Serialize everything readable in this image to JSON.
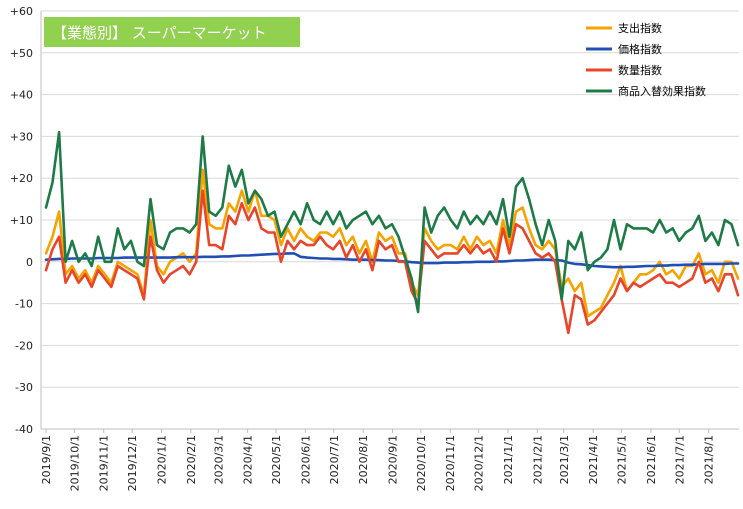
{
  "chart_data": {
    "type": "line",
    "badge": "【業態別】 スーパーマーケット",
    "title": "",
    "xlabel": "",
    "ylabel": "",
    "ylim": [
      -40,
      60
    ],
    "y_ticks": [
      {
        "value": 60,
        "label": "+60"
      },
      {
        "value": 50,
        "label": "+50"
      },
      {
        "value": 40,
        "label": "+40"
      },
      {
        "value": 30,
        "label": "+30"
      },
      {
        "value": 20,
        "label": "+20"
      },
      {
        "value": 10,
        "label": "+10"
      },
      {
        "value": 0,
        "label": "0"
      },
      {
        "value": -10,
        "label": "-10"
      },
      {
        "value": -20,
        "label": "-20"
      },
      {
        "value": -30,
        "label": "-30"
      },
      {
        "value": -40,
        "label": "-40"
      }
    ],
    "x_ticks": [
      "2019/9/1",
      "2019/10/1",
      "2019/11/1",
      "2019/12/1",
      "2020/1/1",
      "2020/2/1",
      "2020/3/1",
      "2020/4/1",
      "2020/5/1",
      "2020/6/1",
      "2020/7/1",
      "2020/8/1",
      "2020/9/1",
      "2020/10/1",
      "2020/11/1",
      "2020/12/1",
      "2021/1/1",
      "2021/2/1",
      "2021/3/1",
      "2021/4/1",
      "2021/5/1",
      "2021/6/1",
      "2021/7/1",
      "2021/8/1"
    ],
    "grid": true,
    "legend_position": "top-right",
    "x_start": "2019/9/1",
    "x_end": "2021/9/1",
    "series": [
      {
        "name": "支出指数",
        "color": "#F5A300",
        "values": [
          2,
          6,
          12,
          -3,
          -1,
          -4,
          -2,
          -5,
          -1,
          -3,
          -5,
          0,
          -1,
          -2,
          -3,
          -8,
          10,
          -1,
          -3,
          0,
          1,
          2,
          0,
          2,
          22,
          9,
          8,
          8,
          14,
          12,
          17,
          12,
          17,
          11,
          11,
          10,
          4,
          8,
          5,
          8,
          6,
          5,
          7,
          7,
          6,
          8,
          4,
          6,
          2,
          5,
          0,
          7,
          5,
          6,
          2,
          2,
          -5,
          -8,
          8,
          5,
          3,
          4,
          4,
          3,
          6,
          3,
          6,
          4,
          5,
          2,
          10,
          4,
          12,
          13,
          8,
          4,
          3,
          5,
          3,
          -6,
          -4,
          -7,
          -5,
          -13,
          -12,
          -11,
          -8,
          -5,
          -1,
          -7,
          -5,
          -3,
          -3,
          -2,
          0,
          -3,
          -2,
          -4,
          -1,
          -1,
          2,
          -3,
          -2,
          -5,
          0,
          0,
          -4
        ]
      },
      {
        "name": "価格指数",
        "color": "#1F4FB5",
        "values": [
          0.5,
          0.6,
          0.7,
          0.7,
          0.8,
          0.8,
          0.8,
          0.8,
          0.9,
          0.9,
          0.9,
          0.9,
          1.0,
          1.0,
          1.0,
          1.0,
          1.0,
          1.0,
          1.0,
          1.0,
          1.1,
          1.1,
          1.1,
          1.1,
          1.2,
          1.2,
          1.2,
          1.3,
          1.3,
          1.4,
          1.5,
          1.5,
          1.6,
          1.7,
          1.8,
          1.9,
          1.9,
          2.0,
          2.0,
          1.2,
          1.0,
          0.9,
          0.8,
          0.8,
          0.7,
          0.7,
          0.6,
          0.5,
          0.5,
          0.5,
          0.4,
          0.4,
          0.3,
          0.3,
          0.2,
          0.1,
          -0.1,
          -0.2,
          -0.3,
          -0.3,
          -0.3,
          -0.2,
          -0.2,
          -0.2,
          -0.1,
          -0.1,
          0.0,
          0.0,
          0.0,
          0.1,
          0.1,
          0.2,
          0.3,
          0.3,
          0.4,
          0.5,
          0.5,
          0.5,
          0.4,
          0.3,
          -0.2,
          -0.5,
          -0.6,
          -0.8,
          -1.0,
          -1.1,
          -1.2,
          -1.3,
          -1.3,
          -1.2,
          -1.2,
          -1.1,
          -1.0,
          -1.0,
          -0.9,
          -0.9,
          -0.8,
          -0.8,
          -0.7,
          -0.7,
          -0.6,
          -0.5,
          -0.5,
          -0.5,
          -0.5,
          -0.4,
          -0.4
        ]
      },
      {
        "name": "数量指数",
        "color": "#E8452A",
        "values": [
          -2,
          3,
          6,
          -5,
          -2,
          -5,
          -3,
          -6,
          -2,
          -4,
          -6,
          -1,
          -2,
          -3,
          -4,
          -9,
          6,
          -2,
          -5,
          -3,
          -2,
          -1,
          -3,
          0,
          17,
          4,
          4,
          3,
          11,
          9,
          14,
          10,
          13,
          8,
          7,
          7,
          0,
          5,
          3,
          5,
          4,
          4,
          6,
          4,
          3,
          5,
          1,
          4,
          0,
          3,
          -2,
          5,
          3,
          4,
          0,
          0,
          -7,
          -10,
          5,
          3,
          1,
          2,
          2,
          2,
          4,
          2,
          4,
          2,
          3,
          0,
          8,
          2,
          9,
          8,
          5,
          2,
          1,
          2,
          0,
          -9,
          -17,
          -8,
          -9,
          -15,
          -14,
          -12,
          -10,
          -8,
          -4,
          -7,
          -5,
          -6,
          -5,
          -4,
          -3,
          -5,
          -5,
          -6,
          -5,
          -4,
          0,
          -5,
          -4,
          -7,
          -3,
          -3,
          -8
        ]
      },
      {
        "name": "商品入替効果指数",
        "color": "#1E7B47",
        "values": [
          13,
          19,
          31,
          0,
          5,
          0,
          2,
          -1,
          6,
          0,
          0,
          8,
          3,
          5,
          0,
          -1,
          15,
          4,
          3,
          7,
          8,
          8,
          7,
          9,
          30,
          12,
          11,
          13,
          23,
          18,
          22,
          14,
          17,
          15,
          11,
          12,
          6,
          9,
          12,
          9,
          14,
          10,
          9,
          12,
          9,
          12,
          8,
          10,
          11,
          12,
          9,
          11,
          8,
          9,
          6,
          1,
          -4,
          -12,
          13,
          7,
          11,
          13,
          10,
          8,
          12,
          9,
          11,
          9,
          12,
          9,
          15,
          6,
          18,
          20,
          15,
          9,
          4,
          10,
          5,
          -9,
          5,
          3,
          7,
          -2,
          0,
          1,
          3,
          10,
          3,
          9,
          8,
          8,
          8,
          7,
          10,
          7,
          8,
          5,
          7,
          8,
          11,
          5,
          7,
          4,
          10,
          9,
          4
        ]
      }
    ]
  }
}
